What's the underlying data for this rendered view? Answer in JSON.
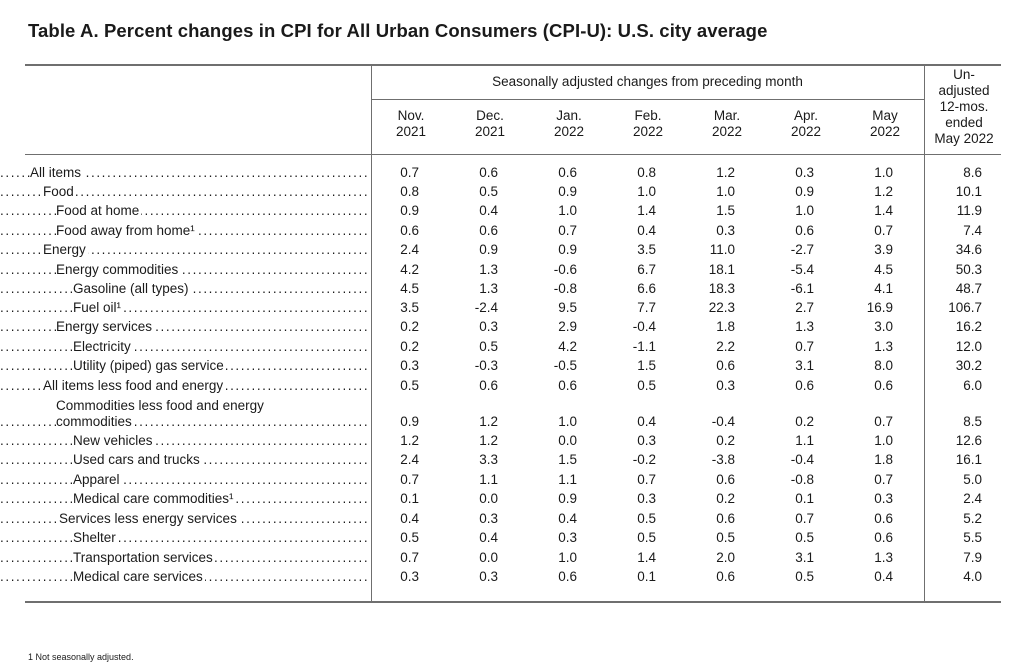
{
  "title": "Table A. Percent changes in CPI for All Urban Consumers (CPI-U): U.S. city average",
  "span_header": "Seasonally adjusted changes from preceding month",
  "columns": [
    {
      "line1": "Nov.",
      "line2": "2021"
    },
    {
      "line1": "Dec.",
      "line2": "2021"
    },
    {
      "line1": "Jan.",
      "line2": "2022"
    },
    {
      "line1": "Feb.",
      "line2": "2022"
    },
    {
      "line1": "Mar.",
      "line2": "2022"
    },
    {
      "line1": "Apr.",
      "line2": "2022"
    },
    {
      "line1": "May",
      "line2": "2022"
    }
  ],
  "unadjusted_header": [
    "Un-",
    "adjusted",
    "12-mos.",
    "ended",
    "May 2022"
  ],
  "rows": [
    {
      "label": "All items",
      "values": [
        "0.7",
        "0.6",
        "0.6",
        "0.8",
        "1.2",
        "0.3",
        "1.0"
      ],
      "annual": "8.6"
    },
    {
      "label": "Food",
      "values": [
        "0.8",
        "0.5",
        "0.9",
        "1.0",
        "1.0",
        "0.9",
        "1.2"
      ],
      "annual": "10.1"
    },
    {
      "label": "Food at home",
      "values": [
        "0.9",
        "0.4",
        "1.0",
        "1.4",
        "1.5",
        "1.0",
        "1.4"
      ],
      "annual": "11.9"
    },
    {
      "label": "Food away from home¹",
      "values": [
        "0.6",
        "0.6",
        "0.7",
        "0.4",
        "0.3",
        "0.6",
        "0.7"
      ],
      "annual": "7.4"
    },
    {
      "label": "Energy",
      "values": [
        "2.4",
        "0.9",
        "0.9",
        "3.5",
        "11.0",
        "-2.7",
        "3.9"
      ],
      "annual": "34.6"
    },
    {
      "label": "Energy commodities",
      "values": [
        "4.2",
        "1.3",
        "-0.6",
        "6.7",
        "18.1",
        "-5.4",
        "4.5"
      ],
      "annual": "50.3"
    },
    {
      "label": "Gasoline (all types)",
      "values": [
        "4.5",
        "1.3",
        "-0.8",
        "6.6",
        "18.3",
        "-6.1",
        "4.1"
      ],
      "annual": "48.7"
    },
    {
      "label": "Fuel oil¹",
      "values": [
        "3.5",
        "-2.4",
        "9.5",
        "7.7",
        "22.3",
        "2.7",
        "16.9"
      ],
      "annual": "106.7"
    },
    {
      "label": "Energy services",
      "values": [
        "0.2",
        "0.3",
        "2.9",
        "-0.4",
        "1.8",
        "1.3",
        "3.0"
      ],
      "annual": "16.2"
    },
    {
      "label": "Electricity",
      "values": [
        "0.2",
        "0.5",
        "4.2",
        "-1.1",
        "2.2",
        "0.7",
        "1.3"
      ],
      "annual": "12.0"
    },
    {
      "label": "Utility (piped) gas service",
      "values": [
        "0.3",
        "-0.3",
        "-0.5",
        "1.5",
        "0.6",
        "3.1",
        "8.0"
      ],
      "annual": "30.2"
    },
    {
      "label": "All items less food and energy",
      "values": [
        "0.5",
        "0.6",
        "0.6",
        "0.5",
        "0.3",
        "0.6",
        "0.6"
      ],
      "annual": "6.0"
    },
    {
      "label_line1": "Commodities less food and energy",
      "label": "commodities",
      "values": [
        "0.9",
        "1.2",
        "1.0",
        "0.4",
        "-0.4",
        "0.2",
        "0.7"
      ],
      "annual": "8.5"
    },
    {
      "label": "New vehicles",
      "values": [
        "1.2",
        "1.2",
        "0.0",
        "0.3",
        "0.2",
        "1.1",
        "1.0"
      ],
      "annual": "12.6"
    },
    {
      "label": "Used cars and trucks",
      "values": [
        "2.4",
        "3.3",
        "1.5",
        "-0.2",
        "-3.8",
        "-0.4",
        "1.8"
      ],
      "annual": "16.1"
    },
    {
      "label": "Apparel",
      "values": [
        "0.7",
        "1.1",
        "1.1",
        "0.7",
        "0.6",
        "-0.8",
        "0.7"
      ],
      "annual": "5.0"
    },
    {
      "label": "Medical care commodities¹",
      "values": [
        "0.1",
        "0.0",
        "0.9",
        "0.3",
        "0.2",
        "0.1",
        "0.3"
      ],
      "annual": "2.4"
    },
    {
      "label": "Services less energy services",
      "values": [
        "0.4",
        "0.3",
        "0.4",
        "0.5",
        "0.6",
        "0.7",
        "0.6"
      ],
      "annual": "5.2"
    },
    {
      "label": "Shelter",
      "values": [
        "0.5",
        "0.4",
        "0.3",
        "0.5",
        "0.5",
        "0.5",
        "0.6"
      ],
      "annual": "5.5"
    },
    {
      "label": "Transportation services",
      "values": [
        "0.7",
        "0.0",
        "1.0",
        "1.4",
        "2.0",
        "3.1",
        "1.3"
      ],
      "annual": "7.9"
    },
    {
      "label": "Medical care services",
      "values": [
        "0.3",
        "0.3",
        "0.6",
        "0.1",
        "0.6",
        "0.5",
        "0.4"
      ],
      "annual": "4.0"
    }
  ],
  "footnote": "1  Not seasonally adjusted."
}
